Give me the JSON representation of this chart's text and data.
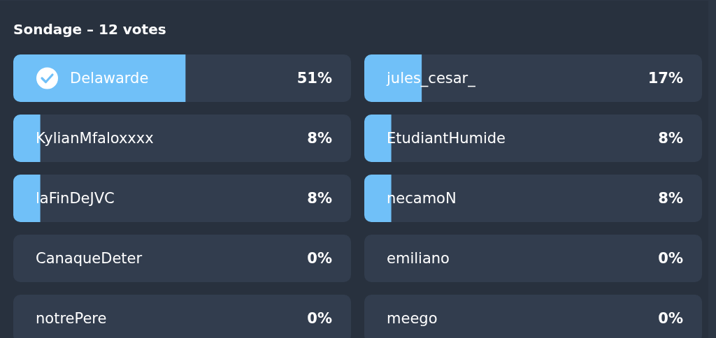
{
  "chart_data": [
    {
      "type": "bar",
      "orientation": "horizontal",
      "title": "Sondage – 12 votes",
      "categories": [
        "Delawarde",
        "KylianMfaloxxxx",
        "laFinDeJVC",
        "CanaqueDeter",
        "notrePere"
      ],
      "values": [
        51,
        8,
        8,
        0,
        0
      ],
      "value_labels": [
        "51%",
        "8%",
        "8%",
        "0%",
        "0%"
      ],
      "color": "#70c0f8",
      "xlim": [
        0,
        100
      ],
      "tick_labels": "y"
    },
    {
      "type": "bar",
      "orientation": "horizontal",
      "categories": [
        "jules_cesar_",
        "EtudiantHumide",
        "necamoN",
        "emiliano",
        "meego"
      ],
      "values": [
        17,
        8,
        8,
        0,
        0
      ],
      "value_labels": [
        "17%",
        "8%",
        "8%",
        "0%",
        "0%"
      ],
      "color": "#70c0f8",
      "xlim": [
        0,
        100
      ],
      "tick_labels": "y"
    }
  ]
}
